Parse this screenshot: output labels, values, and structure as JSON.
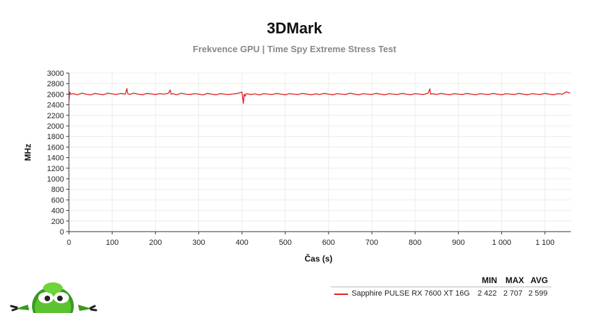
{
  "chart_data": {
    "type": "line",
    "title": "3DMark",
    "subtitle": "Frekvence GPU | Time Spy Extreme Stress Test",
    "xlabel": "Čas (s)",
    "ylabel": "MHz",
    "xlim": [
      0,
      1160
    ],
    "ylim": [
      0,
      3000
    ],
    "x_ticks": [
      0,
      100,
      200,
      300,
      400,
      500,
      600,
      700,
      800,
      900,
      1000,
      1100
    ],
    "x_tick_labels": [
      "0",
      "100",
      "200",
      "300",
      "400",
      "500",
      "600",
      "700",
      "800",
      "900",
      "1 000",
      "1 100"
    ],
    "y_ticks": [
      0,
      200,
      400,
      600,
      800,
      1000,
      1200,
      1400,
      1600,
      1800,
      2000,
      2200,
      2400,
      2600,
      2800,
      3000
    ],
    "y_tick_labels": [
      "0",
      "200",
      "400",
      "600",
      "800",
      "1000",
      "1200",
      "1400",
      "1600",
      "1800",
      "2000",
      "2200",
      "2400",
      "2600",
      "2800",
      "3000"
    ],
    "grid": true,
    "legend_position": "bottom-right",
    "series": [
      {
        "name": "Sapphire PULSE RX 7600 XT 16G",
        "color": "#e02020",
        "min": "2 422",
        "max": "2 707",
        "avg": "2 599",
        "x": [
          0,
          2,
          4,
          10,
          20,
          30,
          40,
          50,
          60,
          70,
          80,
          90,
          100,
          110,
          120,
          130,
          134,
          136,
          140,
          150,
          160,
          170,
          180,
          190,
          200,
          210,
          220,
          230,
          234,
          236,
          240,
          250,
          260,
          270,
          280,
          290,
          300,
          310,
          320,
          330,
          340,
          350,
          360,
          370,
          380,
          390,
          400,
          403,
          405,
          407,
          410,
          420,
          430,
          440,
          450,
          460,
          470,
          480,
          490,
          500,
          510,
          520,
          530,
          540,
          550,
          560,
          570,
          580,
          590,
          600,
          610,
          620,
          630,
          640,
          650,
          660,
          670,
          680,
          690,
          700,
          710,
          720,
          730,
          740,
          750,
          760,
          770,
          780,
          790,
          800,
          810,
          820,
          830,
          834,
          836,
          840,
          850,
          860,
          870,
          880,
          890,
          900,
          910,
          920,
          930,
          940,
          950,
          960,
          970,
          980,
          990,
          1000,
          1010,
          1020,
          1030,
          1040,
          1050,
          1060,
          1070,
          1080,
          1090,
          1100,
          1110,
          1120,
          1130,
          1140,
          1150,
          1158
        ],
        "y": [
          2450,
          2640,
          2600,
          2610,
          2590,
          2620,
          2600,
          2585,
          2615,
          2600,
          2590,
          2620,
          2605,
          2595,
          2615,
          2600,
          2707,
          2610,
          2595,
          2620,
          2600,
          2590,
          2615,
          2605,
          2595,
          2610,
          2600,
          2620,
          2680,
          2600,
          2610,
          2590,
          2620,
          2600,
          2595,
          2610,
          2600,
          2585,
          2615,
          2600,
          2590,
          2610,
          2600,
          2595,
          2605,
          2615,
          2640,
          2422,
          2600,
          2560,
          2610,
          2595,
          2605,
          2585,
          2610,
          2600,
          2595,
          2615,
          2600,
          2590,
          2610,
          2600,
          2595,
          2615,
          2600,
          2590,
          2605,
          2595,
          2615,
          2600,
          2590,
          2610,
          2600,
          2595,
          2620,
          2600,
          2590,
          2610,
          2600,
          2595,
          2615,
          2600,
          2590,
          2610,
          2600,
          2595,
          2615,
          2600,
          2590,
          2610,
          2600,
          2595,
          2620,
          2700,
          2600,
          2610,
          2595,
          2615,
          2600,
          2590,
          2610,
          2600,
          2595,
          2615,
          2600,
          2590,
          2610,
          2600,
          2595,
          2615,
          2600,
          2590,
          2610,
          2600,
          2595,
          2615,
          2600,
          2590,
          2610,
          2600,
          2595,
          2615,
          2600,
          2590,
          2610,
          2600,
          2645,
          2620
        ]
      }
    ],
    "legend_headers": {
      "min": "MIN",
      "max": "MAX",
      "avg": "AVG"
    }
  },
  "branding": {
    "mascot": "green-alien-mascot-icon"
  }
}
